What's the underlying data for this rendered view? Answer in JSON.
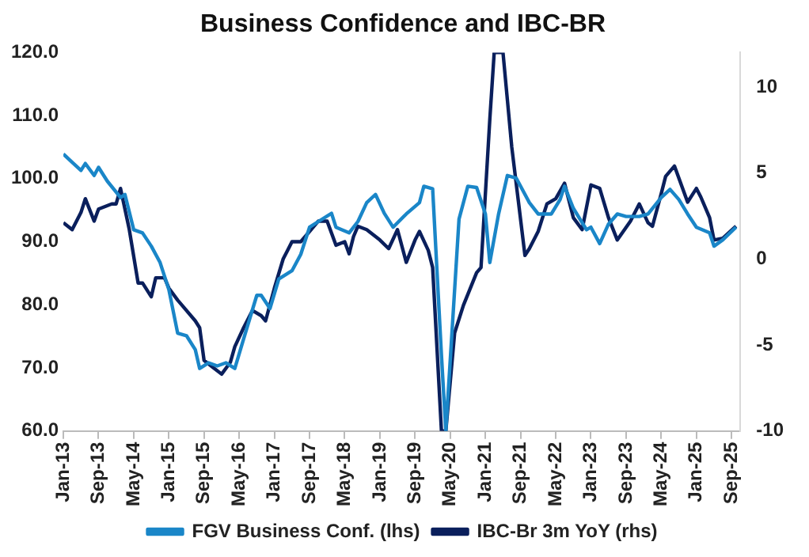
{
  "chart_data": {
    "type": "line",
    "title": "Business Confidence and IBC-BR",
    "legend": "bottom",
    "grid": false,
    "marker": "none",
    "line_style": "solid",
    "xlim": [
      "2013-01",
      "2025-11"
    ],
    "xticks": [
      {
        "value": "2013-01",
        "label": "Jan-13"
      },
      {
        "value": "2013-09",
        "label": "Sep-13"
      },
      {
        "value": "2014-05",
        "label": "May-14"
      },
      {
        "value": "2015-01",
        "label": "Jan-15"
      },
      {
        "value": "2015-09",
        "label": "Sep-15"
      },
      {
        "value": "2016-05",
        "label": "May-16"
      },
      {
        "value": "2017-01",
        "label": "Jan-17"
      },
      {
        "value": "2017-09",
        "label": "Sep-17"
      },
      {
        "value": "2018-05",
        "label": "May-18"
      },
      {
        "value": "2019-01",
        "label": "Jan-19"
      },
      {
        "value": "2019-09",
        "label": "Sep-19"
      },
      {
        "value": "2020-05",
        "label": "May-20"
      },
      {
        "value": "2021-01",
        "label": "Jan-21"
      },
      {
        "value": "2021-09",
        "label": "Sep-21"
      },
      {
        "value": "2022-05",
        "label": "May-22"
      },
      {
        "value": "2023-01",
        "label": "Jan-23"
      },
      {
        "value": "2023-09",
        "label": "Sep-23"
      },
      {
        "value": "2024-05",
        "label": "May-24"
      },
      {
        "value": "2025-01",
        "label": "Jan-25"
      },
      {
        "value": "2025-09",
        "label": "Sep-25"
      }
    ],
    "ylim": [
      60,
      120
    ],
    "yticks": [
      {
        "value": 60,
        "label": "60.0"
      },
      {
        "value": 70,
        "label": "70.0"
      },
      {
        "value": 80,
        "label": "80.0"
      },
      {
        "value": 90,
        "label": "90.0"
      },
      {
        "value": 100,
        "label": "100.0"
      },
      {
        "value": 110,
        "label": "110.0"
      },
      {
        "value": 120,
        "label": "120.0"
      }
    ],
    "y2lim": [
      -10,
      12
    ],
    "y2ticks": [
      -10,
      -5,
      0,
      5,
      10
    ],
    "series": [
      {
        "name": "FGV Business Conf. (lhs)",
        "color": "#1a86c8",
        "x": [
          "2013-01",
          "2013-03",
          "2013-05",
          "2013-06",
          "2013-08",
          "2013-09",
          "2013-11",
          "2014-02",
          "2014-03",
          "2014-05",
          "2014-07",
          "2014-09",
          "2014-11",
          "2015-01",
          "2015-03",
          "2015-05",
          "2015-07",
          "2015-08",
          "2015-10",
          "2015-12",
          "2016-02",
          "2016-04",
          "2016-06",
          "2016-09",
          "2016-10",
          "2016-12",
          "2017-02",
          "2017-05",
          "2017-07",
          "2017-09",
          "2017-11",
          "2018-02",
          "2018-03",
          "2018-06",
          "2018-08",
          "2018-10",
          "2018-12",
          "2019-02",
          "2019-04",
          "2019-07",
          "2019-10",
          "2019-11",
          "2020-01",
          "2020-03",
          "2020-04",
          "2020-07",
          "2020-09",
          "2020-11",
          "2021-01",
          "2021-02",
          "2021-04",
          "2021-06",
          "2021-08",
          "2021-11",
          "2022-01",
          "2022-04",
          "2022-06",
          "2022-07",
          "2022-09",
          "2022-12",
          "2023-01",
          "2023-03",
          "2023-05",
          "2023-07",
          "2023-09",
          "2023-12",
          "2024-02",
          "2024-05",
          "2024-07",
          "2024-09",
          "2024-11",
          "2025-01",
          "2025-04",
          "2025-05",
          "2025-07",
          "2025-10"
        ],
        "values": [
          103.9,
          102.6,
          101.3,
          102.4,
          100.5,
          101.8,
          99.6,
          97.0,
          97.5,
          91.9,
          91.4,
          89.3,
          86.7,
          82.4,
          75.5,
          75.1,
          72.9,
          69.9,
          70.8,
          70.3,
          70.8,
          69.9,
          74.6,
          81.5,
          81.5,
          79.4,
          84.1,
          85.4,
          88.0,
          92.3,
          93.2,
          94.5,
          92.3,
          91.4,
          93.2,
          96.2,
          97.5,
          94.5,
          92.3,
          94.4,
          96.2,
          98.8,
          98.4,
          72,
          60,
          93.6,
          98.8,
          98.6,
          94.4,
          86.7,
          94.4,
          100.5,
          100.1,
          96.2,
          94.4,
          94.4,
          96.7,
          98.8,
          95.3,
          91.9,
          92.3,
          89.7,
          92.8,
          94.4,
          94.0,
          94.0,
          94.4,
          97.0,
          98.3,
          96.7,
          94.4,
          92.3,
          91.4,
          89.3,
          90.3,
          92.3
        ]
      },
      {
        "name": "IBC-Br 3m YoY (rhs)",
        "color": "#0a1f5c",
        "axis": "y2",
        "x": [
          "2013-01",
          "2013-03",
          "2013-05",
          "2013-06",
          "2013-08",
          "2013-09",
          "2013-12",
          "2014-01",
          "2014-02",
          "2014-04",
          "2014-06",
          "2014-07",
          "2014-09",
          "2014-10",
          "2014-12",
          "2015-01",
          "2015-03",
          "2015-04",
          "2015-07",
          "2015-08",
          "2015-09",
          "2015-11",
          "2016-01",
          "2016-03",
          "2016-04",
          "2016-06",
          "2016-08",
          "2016-10",
          "2016-11",
          "2017-01",
          "2017-03",
          "2017-04",
          "2017-05",
          "2017-07",
          "2017-09",
          "2017-11",
          "2018-01",
          "2018-03",
          "2018-05",
          "2018-06",
          "2018-07",
          "2018-08",
          "2018-10",
          "2019-01",
          "2019-03",
          "2019-05",
          "2019-07",
          "2019-09",
          "2019-10",
          "2019-12",
          "2020-01",
          "2020-03",
          "2020-04",
          "2020-06",
          "2020-08",
          "2020-11",
          "2020-12",
          "2021-02",
          "2021-03",
          "2021-05",
          "2021-07",
          "2021-10",
          "2021-11",
          "2022-01",
          "2022-03",
          "2022-05",
          "2022-07",
          "2022-09",
          "2022-11",
          "2023-01",
          "2023-03",
          "2023-05",
          "2023-07",
          "2023-10",
          "2023-12",
          "2024-02",
          "2024-03",
          "2024-05",
          "2024-06",
          "2024-08",
          "2024-11",
          "2025-01",
          "2025-02",
          "2025-04",
          "2025-05",
          "2025-07",
          "2025-10"
        ],
        "values": [
          2.1,
          1.7,
          2.7,
          3.5,
          2.2,
          2.9,
          3.2,
          3.2,
          4.1,
          1.7,
          -1.4,
          -1.4,
          -2.2,
          -1.1,
          -1.1,
          -1.7,
          -2.4,
          -2.7,
          -3.6,
          -4.0,
          -5.9,
          -6.3,
          -6.7,
          -6.0,
          -5.1,
          -4.0,
          -3.0,
          -3.3,
          -3.6,
          -1.7,
          0,
          0.5,
          1.0,
          1.0,
          1.6,
          2.2,
          2.2,
          0.8,
          1.0,
          0.3,
          1.3,
          1.9,
          1.7,
          1.1,
          0.6,
          1.7,
          -0.2,
          1.1,
          1.6,
          0.5,
          -0.5,
          -10,
          -10,
          -4.3,
          -2.7,
          -0.8,
          -0.5,
          8.1,
          12,
          12,
          6.5,
          0.2,
          0.6,
          1.6,
          3.2,
          3.5,
          4.4,
          2.4,
          1.7,
          4.3,
          4.1,
          2.4,
          1.1,
          2.2,
          3.2,
          2.1,
          1.9,
          3.8,
          4.8,
          5.4,
          3.3,
          4.1,
          3.6,
          2.4,
          1.1,
          1.2,
          1.9
        ]
      }
    ]
  }
}
